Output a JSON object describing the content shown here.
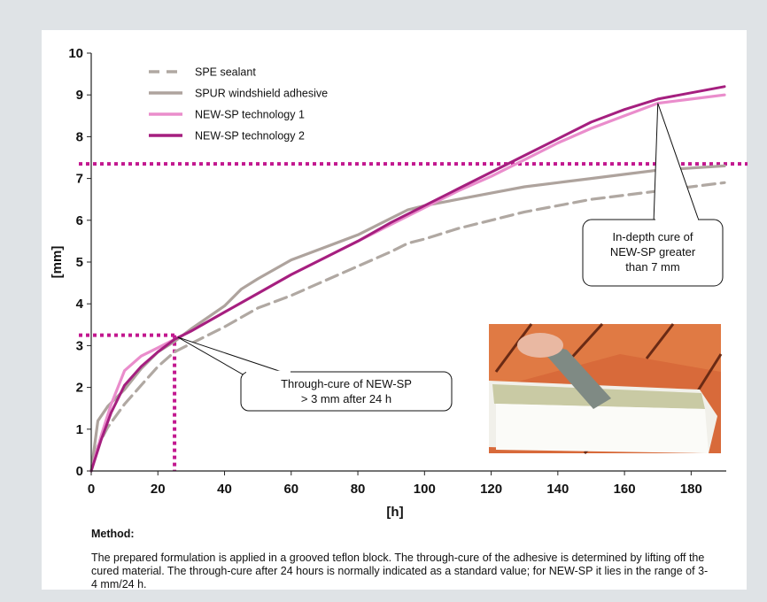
{
  "chart_data": {
    "type": "line",
    "xlabel": "[h]",
    "ylabel": "[mm]",
    "xlim": [
      0,
      190
    ],
    "ylim": [
      0,
      10
    ],
    "x_ticks": [
      "0",
      "20",
      "40",
      "60",
      "80",
      "100",
      "120",
      "140",
      "160",
      "180"
    ],
    "y_ticks": [
      "0",
      "1",
      "2",
      "3",
      "4",
      "5",
      "6",
      "7",
      "8",
      "9",
      "10"
    ],
    "grid": false,
    "legend_position": "top-left",
    "series": [
      {
        "name": "SPE sealant",
        "color": "#b0a8a2",
        "style": "dashed",
        "x": [
          0,
          2,
          5,
          10,
          15,
          20,
          25,
          30,
          40,
          50,
          60,
          70,
          80,
          90,
          95,
          100,
          110,
          120,
          130,
          140,
          150,
          160,
          170,
          180,
          190
        ],
        "y": [
          0,
          0.6,
          1.05,
          1.6,
          2.05,
          2.5,
          2.85,
          3.05,
          3.45,
          3.9,
          4.2,
          4.55,
          4.9,
          5.25,
          5.45,
          5.55,
          5.8,
          6.0,
          6.2,
          6.35,
          6.5,
          6.6,
          6.7,
          6.8,
          6.9
        ]
      },
      {
        "name": "SPUR windshield adhesive",
        "color": "#aea39d",
        "style": "solid",
        "x": [
          0,
          2,
          5,
          10,
          15,
          20,
          25,
          30,
          40,
          45,
          50,
          60,
          70,
          80,
          90,
          95,
          100,
          110,
          120,
          130,
          140,
          150,
          160,
          170,
          180,
          190
        ],
        "y": [
          0,
          1.2,
          1.55,
          1.95,
          2.45,
          2.85,
          3.1,
          3.4,
          3.95,
          4.35,
          4.6,
          5.05,
          5.35,
          5.65,
          6.05,
          6.25,
          6.35,
          6.5,
          6.65,
          6.8,
          6.9,
          7.0,
          7.1,
          7.2,
          7.25,
          7.3
        ]
      },
      {
        "name": "NEW-SP technology 1",
        "color": "#ea8dcc",
        "style": "solid",
        "x": [
          0,
          3,
          6,
          10,
          15,
          20,
          25,
          30,
          40,
          50,
          60,
          70,
          80,
          90,
          100,
          110,
          120,
          130,
          140,
          150,
          160,
          170,
          180,
          190
        ],
        "y": [
          0,
          0.85,
          1.6,
          2.4,
          2.75,
          2.95,
          3.15,
          3.35,
          3.8,
          4.25,
          4.7,
          5.1,
          5.5,
          5.9,
          6.3,
          6.7,
          7.05,
          7.45,
          7.85,
          8.2,
          8.5,
          8.8,
          8.9,
          9.0
        ]
      },
      {
        "name": "NEW-SP technology 2",
        "color": "#a51f7f",
        "style": "solid",
        "x": [
          0,
          3,
          6,
          10,
          15,
          20,
          25,
          30,
          40,
          50,
          60,
          70,
          80,
          90,
          100,
          110,
          120,
          130,
          140,
          150,
          160,
          170,
          180,
          190
        ],
        "y": [
          0,
          0.75,
          1.4,
          2.05,
          2.5,
          2.85,
          3.15,
          3.35,
          3.8,
          4.25,
          4.7,
          5.1,
          5.5,
          5.95,
          6.35,
          6.75,
          7.15,
          7.55,
          7.95,
          8.35,
          8.65,
          8.9,
          9.05,
          9.2
        ]
      }
    ],
    "reference_lines": [
      {
        "orientation": "horizontal",
        "y": 7.35,
        "color": "#c2188f",
        "style": "dotted"
      },
      {
        "orientation": "horizontal",
        "y": 3.25,
        "color": "#c2188f",
        "style": "dotted",
        "x_end": 25
      },
      {
        "orientation": "vertical",
        "x": 25,
        "color": "#c2188f",
        "style": "dotted",
        "y_end": 3.25
      }
    ],
    "annotations": [
      {
        "lines": [
          "In-depth cure of",
          "NEW-SP greater",
          "than 7 mm"
        ],
        "points_to": [
          170,
          8.8
        ]
      },
      {
        "lines": [
          "Through-cure of NEW-SP",
          "> 3 mm after 24 h"
        ],
        "points_to": [
          26,
          3.2
        ]
      }
    ]
  },
  "inset_photo": {
    "description_icon": "photo-icon"
  },
  "method": {
    "title": "Method:",
    "body": "The prepared formulation is applied in a grooved teflon block. The through-cure of the adhesive is determined by lifting off the cured material. The through-cure after 24 hours is normally indicated as a standard value; for NEW-SP it lies in the range of 3-4 mm/24 h."
  }
}
